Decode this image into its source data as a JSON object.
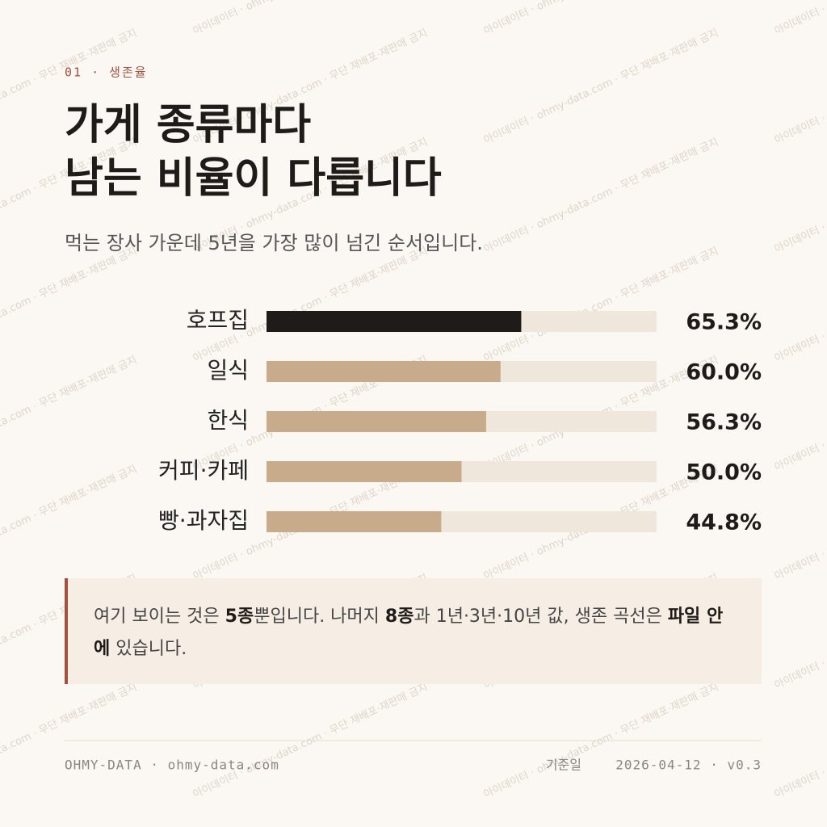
{
  "header": {
    "eyebrow": "01 · 생존율",
    "title_lines": [
      "가게 종류마다",
      "남는 비율이 다릅니다"
    ],
    "subtitle": "먹는 장사 가운데 5년을 가장 많이 넘긴 순서입니다."
  },
  "chart_data": {
    "type": "hbar",
    "categories": [
      "호프집",
      "일식",
      "한식",
      "커피·카페",
      "빵·과자집"
    ],
    "values": [
      65.3,
      60.0,
      56.3,
      50.0,
      44.8
    ],
    "value_labels": [
      "65.3%",
      "60.0%",
      "56.3%",
      "50.0%",
      "44.8%"
    ],
    "colors": [
      "#1f1b18",
      "#c8ab8a",
      "#c8ab8a",
      "#c8ab8a",
      "#c8ab8a"
    ],
    "track_color": "#f0e7dc",
    "xlim": [
      0,
      100
    ]
  },
  "note": {
    "parts": [
      {
        "text": "여기 보이는 것은 ",
        "bold": false
      },
      {
        "text": "5종",
        "bold": true
      },
      {
        "text": "뿐입니다. 나머지 ",
        "bold": false
      },
      {
        "text": "8종",
        "bold": true
      },
      {
        "text": "과 1년·3년·10년 값, 생존 곡선은 ",
        "bold": false
      },
      {
        "text": "파일 안에",
        "bold": true
      },
      {
        "text": " 있습니다.",
        "bold": false
      }
    ]
  },
  "footer": {
    "brand": "OHMY-DATA · ohmy-data.com",
    "date_label": "기준일",
    "version_line": "2026-04-12 · v0.3"
  },
  "watermark": "아이데이터 · ohmy-data.com · 무단 재배포·재판매 금지"
}
